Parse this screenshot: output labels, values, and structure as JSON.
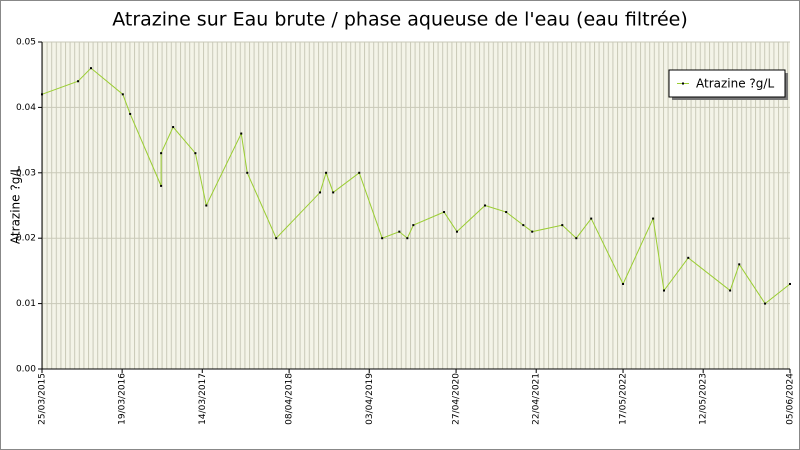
{
  "chart_data": {
    "type": "line",
    "title": "Atrazine sur Eau brute / phase aqueuse de l'eau (eau filtrée)",
    "y_label": "Atrazine ?g/L",
    "x": [
      "25/03/2015",
      "03/09/2015",
      "31/10/2015",
      "22/03/2016",
      "24/04/2016",
      "10/09/2016",
      "10/09/2016",
      "03/11/2016",
      "11/02/2017",
      "01/04/2017",
      "05/09/2017",
      "02/10/2017",
      "09/02/2018",
      "25/08/2018",
      "21/09/2018",
      "23/10/2018",
      "17/02/2019",
      "31/05/2019",
      "16/08/2019",
      "21/09/2019",
      "18/10/2019",
      "04/03/2020",
      "01/05/2020",
      "04/09/2020",
      "08/12/2020",
      "23/02/2021",
      "04/04/2021",
      "17/08/2021",
      "19/10/2021",
      "25/12/2021",
      "17/05/2022",
      "29/09/2022",
      "17/11/2022",
      "06/03/2023",
      "10/09/2023",
      "21/10/2023",
      "14/02/2024",
      "05/06/2024"
    ],
    "series": [
      {
        "name": "Atrazine ?g/L",
        "color": "#9acd32",
        "marker_color": "#000000",
        "values": [
          0.042,
          0.044,
          0.046,
          0.042,
          0.039,
          0.028,
          0.033,
          0.037,
          0.033,
          0.025,
          0.036,
          0.03,
          0.02,
          0.027,
          0.03,
          0.027,
          0.03,
          0.02,
          0.021,
          0.02,
          0.022,
          0.024,
          0.021,
          0.025,
          0.024,
          0.022,
          0.021,
          0.022,
          0.02,
          0.023,
          0.013,
          0.023,
          0.012,
          0.017,
          0.012,
          0.016,
          0.01,
          0.013
        ]
      }
    ],
    "xlim": [
      "25/03/2015",
      "05/06/2024"
    ],
    "xticks": [
      "25/03/2015",
      "19/03/2016",
      "14/03/2017",
      "08/04/2018",
      "03/04/2019",
      "27/04/2020",
      "22/04/2021",
      "17/05/2022",
      "12/05/2023",
      "05/06/2024"
    ],
    "ylim": [
      0,
      0.05
    ],
    "yticks": [
      {
        "value": 0,
        "label": "0.00"
      },
      0.01,
      0.02,
      0.03,
      0.04,
      0.05
    ],
    "grid": true,
    "legend": "upper right"
  }
}
